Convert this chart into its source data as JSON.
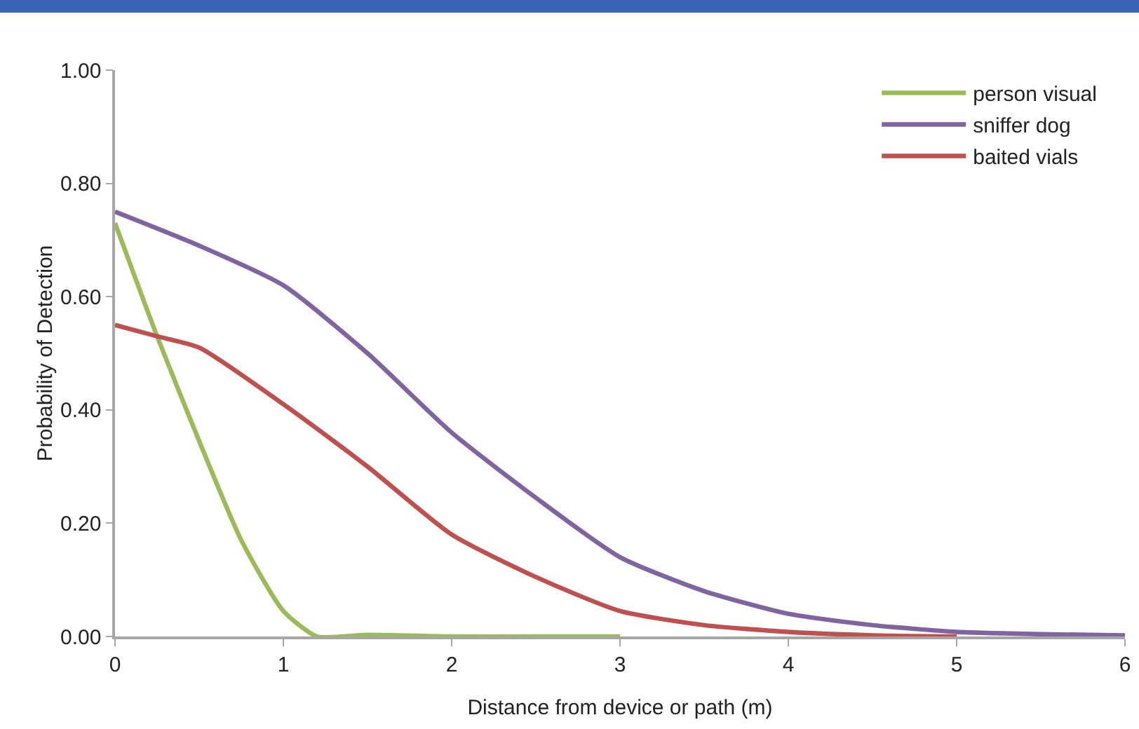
{
  "chart_data": {
    "type": "line",
    "xlabel": "Distance from device or path (m)",
    "ylabel": "Probability of Detection",
    "xlim": [
      0,
      6
    ],
    "xticks": [
      0,
      1,
      2,
      3,
      4,
      5,
      6
    ],
    "ylim": [
      0,
      1
    ],
    "yticks": [
      {
        "value": 0,
        "label": "0.00"
      },
      {
        "value": 0.2,
        "label": "0.20"
      },
      {
        "value": 0.4,
        "label": "0.40"
      },
      {
        "value": 0.6,
        "label": "0.60"
      },
      {
        "value": 0.8,
        "label": "0.80"
      },
      {
        "value": 1,
        "label": "1.00"
      }
    ],
    "grid": false,
    "legend": "top right",
    "marker": "none",
    "line_style": "solid",
    "series": [
      {
        "name": "person visual",
        "color": "#9bbb59",
        "x": [
          0,
          0.25,
          0.5,
          0.75,
          1,
          1.2,
          1.5,
          2,
          2.5,
          3
        ],
        "values": [
          0.73,
          0.53,
          0.345,
          0.17,
          0.045,
          0,
          0.003,
          0,
          0,
          0
        ]
      },
      {
        "name": "sniffer dog",
        "color": "#8064a2",
        "x": [
          0,
          0.5,
          1,
          1.5,
          2,
          2.5,
          3,
          3.5,
          4,
          4.5,
          5,
          5.5,
          6
        ],
        "values": [
          0.75,
          0.69,
          0.62,
          0.5,
          0.36,
          0.245,
          0.14,
          0.08,
          0.04,
          0.02,
          0.008,
          0.004,
          0.002
        ]
      },
      {
        "name": "baited vials",
        "color": "#c0504d",
        "x": [
          0,
          0.25,
          0.5,
          1,
          1.5,
          2,
          2.5,
          3,
          3.5,
          4,
          4.5,
          5
        ],
        "values": [
          0.55,
          0.53,
          0.51,
          0.41,
          0.3,
          0.18,
          0.105,
          0.045,
          0.02,
          0.008,
          0.002,
          0
        ]
      }
    ]
  }
}
